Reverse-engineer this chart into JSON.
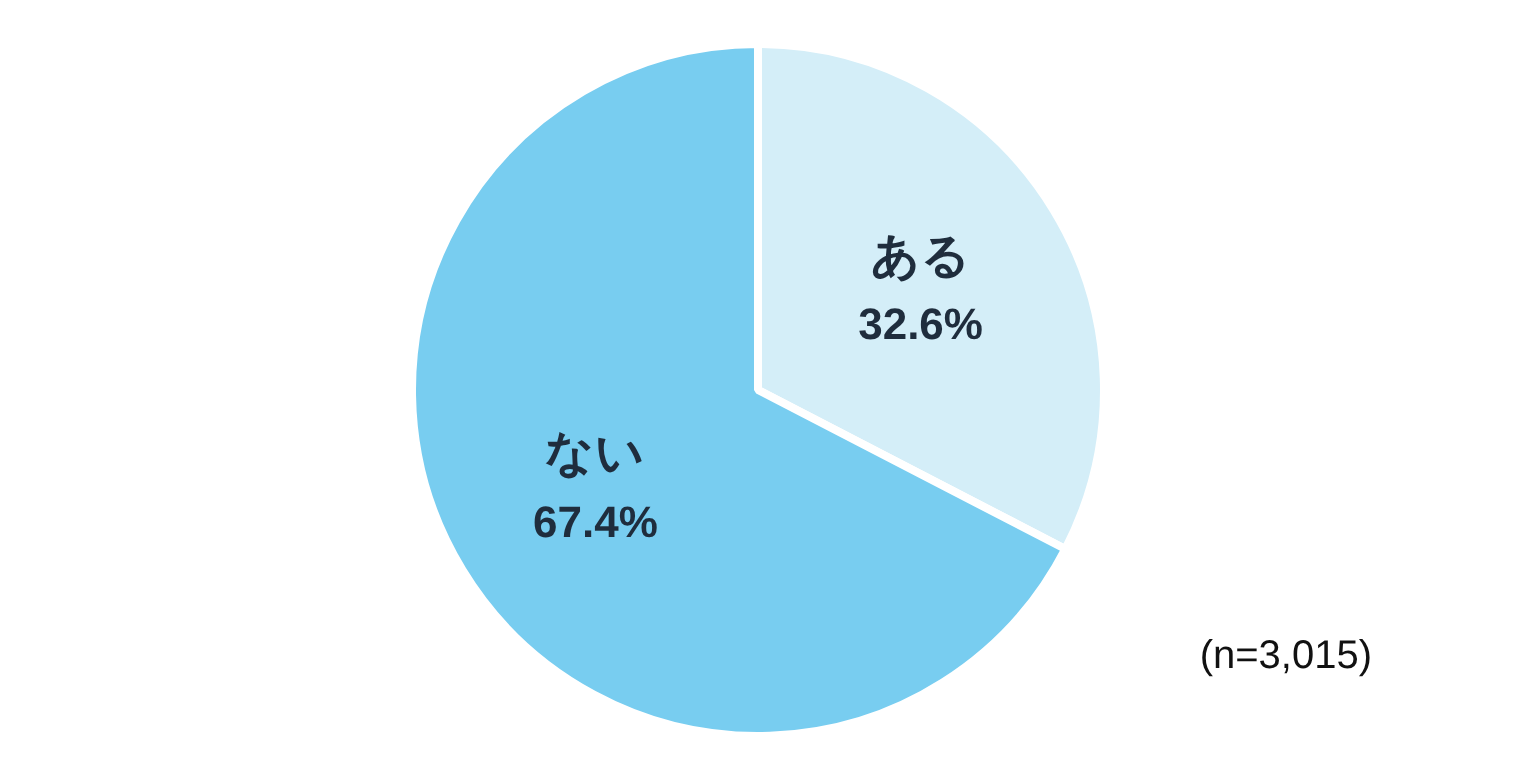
{
  "chart_data": {
    "type": "pie",
    "categories": [
      "ある",
      "ない"
    ],
    "values": [
      32.6,
      67.4
    ],
    "colors": [
      "#d4eef8",
      "#78cdf0"
    ],
    "value_labels": [
      "32.6%",
      "67.4%"
    ],
    "annotations": [
      "(n=3,015)"
    ]
  }
}
